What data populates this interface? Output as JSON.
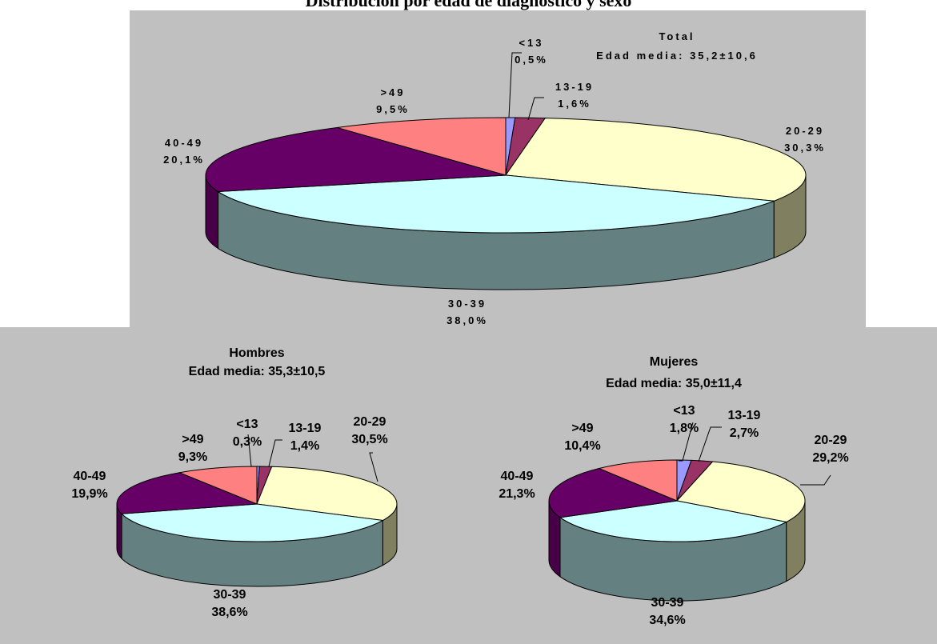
{
  "page_title": "Distribución por edad de diagnóstico y sexo",
  "chart_data": [
    {
      "type": "pie",
      "title": "Total",
      "subtitle": "Edad media: 35,2±10,6",
      "categories": [
        "<13",
        "13-19",
        "20-29",
        "30-39",
        "40-49",
        ">49"
      ],
      "values": [
        0.5,
        1.6,
        30.3,
        38.0,
        20.1,
        9.5
      ],
      "value_labels": [
        "0,5%",
        "1,6%",
        "30,3%",
        "38,0%",
        "20,1%",
        "9,5%"
      ],
      "colors": [
        "#9999ff",
        "#993366",
        "#ffffcc",
        "#ccffff",
        "#660066",
        "#ff8080"
      ],
      "side_colors": [
        "#6b6bb3",
        "#6b2447",
        "#808060",
        "#648080",
        "#470047",
        "#b35a5a"
      ]
    },
    {
      "type": "pie",
      "title": "Hombres",
      "subtitle": "Edad media: 35,3±10,5",
      "categories": [
        "<13",
        "13-19",
        "20-29",
        "30-39",
        "40-49",
        ">49"
      ],
      "values": [
        0.3,
        1.4,
        30.5,
        38.6,
        19.9,
        9.3
      ],
      "value_labels": [
        "0,3%",
        "1,4%",
        "30,5%",
        "38,6%",
        "19,9%",
        "9,3%"
      ],
      "colors": [
        "#9999ff",
        "#993366",
        "#ffffcc",
        "#ccffff",
        "#660066",
        "#ff8080"
      ],
      "side_colors": [
        "#6b6bb3",
        "#6b2447",
        "#808060",
        "#648080",
        "#470047",
        "#b35a5a"
      ]
    },
    {
      "type": "pie",
      "title": "Mujeres",
      "subtitle": "Edad media: 35,0±11,4",
      "categories": [
        "<13",
        "13-19",
        "20-29",
        "30-39",
        "40-49",
        ">49"
      ],
      "values": [
        1.8,
        2.7,
        29.2,
        34.6,
        21.3,
        10.4
      ],
      "value_labels": [
        "1,8%",
        "2,7%",
        "29,2%",
        "34,6%",
        "21,3%",
        "10,4%"
      ],
      "colors": [
        "#9999ff",
        "#993366",
        "#ffffcc",
        "#ccffff",
        "#660066",
        "#ff8080"
      ],
      "side_colors": [
        "#6b6bb3",
        "#6b2447",
        "#808060",
        "#648080",
        "#470047",
        "#b35a5a"
      ]
    }
  ]
}
